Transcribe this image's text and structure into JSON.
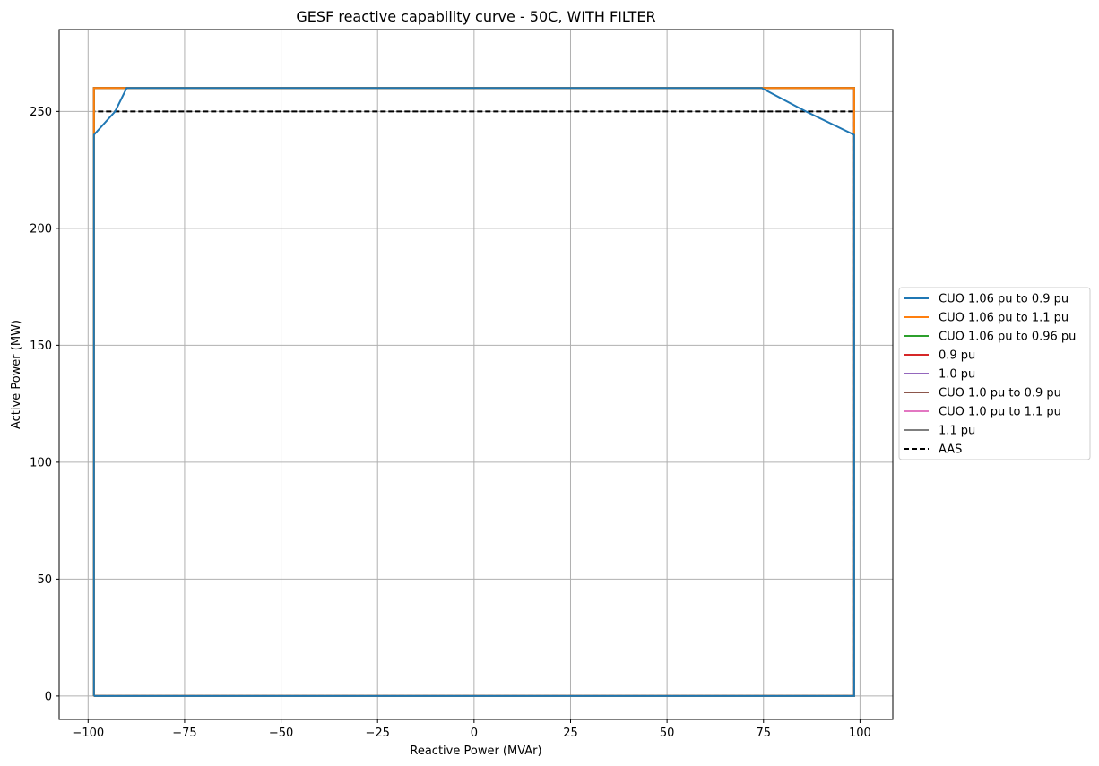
{
  "chart_data": {
    "type": "line",
    "title": "GESF reactive capability curve - 50C, WITH FILTER",
    "xlabel": "Reactive Power (MVAr)",
    "ylabel": "Active Power (MW)",
    "xlim": [
      -107.5,
      108.5
    ],
    "ylim": [
      -10,
      285
    ],
    "xticks": [
      -100,
      -75,
      -50,
      -25,
      0,
      25,
      50,
      75,
      100
    ],
    "xtick_labels": [
      "−100",
      "−75",
      "−50",
      "−25",
      "0",
      "25",
      "50",
      "75",
      "100"
    ],
    "yticks": [
      0,
      50,
      100,
      150,
      200,
      250
    ],
    "ytick_labels": [
      "0",
      "50",
      "100",
      "150",
      "200",
      "250"
    ],
    "grid": true,
    "legend_position": "center-right-outside",
    "series": [
      {
        "name": "CUO 1.06 pu to 0.9 pu",
        "color": "#1f77b4",
        "dash": "solid",
        "x": [
          -98.5,
          -98.5,
          -93,
          -90,
          74.5,
          86,
          98.5,
          98.5,
          -98.5
        ],
        "y": [
          0,
          240,
          250,
          260,
          260,
          250,
          240,
          0,
          0
        ]
      },
      {
        "name": "CUO 1.06 pu to 1.1 pu",
        "color": "#ff7f0e",
        "dash": "solid",
        "x": [
          -98.5,
          -98.5,
          98.5,
          98.5,
          -98.5
        ],
        "y": [
          0,
          260,
          260,
          0,
          0
        ]
      },
      {
        "name": "CUO 1.06 pu to 0.96 pu",
        "color": "#2ca02c",
        "dash": "solid",
        "x": [
          -98.5,
          -98.5,
          98.5,
          98.5,
          -98.5
        ],
        "y": [
          0,
          260,
          260,
          0,
          0
        ]
      },
      {
        "name": "0.9 pu",
        "color": "#d62728",
        "dash": "solid",
        "x": [
          -98.5,
          -98.5,
          98.5,
          98.5,
          -98.5
        ],
        "y": [
          0,
          260,
          260,
          0,
          0
        ]
      },
      {
        "name": "1.0 pu",
        "color": "#9467bd",
        "dash": "solid",
        "x": [
          -98.5,
          -98.5,
          98.5,
          98.5,
          -98.5
        ],
        "y": [
          0,
          260,
          260,
          0,
          0
        ]
      },
      {
        "name": "CUO 1.0 pu to 0.9 pu",
        "color": "#8c564b",
        "dash": "solid",
        "x": [
          -98.5,
          -98.5,
          98.5,
          98.5,
          -98.5
        ],
        "y": [
          0,
          260,
          260,
          0,
          0
        ]
      },
      {
        "name": "CUO 1.0 pu to 1.1 pu",
        "color": "#e377c2",
        "dash": "solid",
        "x": [
          -98.5,
          -98.5,
          98.5,
          98.5,
          -98.5
        ],
        "y": [
          0,
          260,
          260,
          0,
          0
        ]
      },
      {
        "name": "1.1 pu",
        "color": "#7f7f7f",
        "dash": "solid",
        "x": [
          -98.5,
          -98.5,
          98.5,
          98.5,
          -98.5
        ],
        "y": [
          0,
          260,
          260,
          0,
          0
        ]
      },
      {
        "name": "AAS",
        "color": "#000000",
        "dash": "dashed",
        "x": [
          -98.5,
          -98.5,
          98.5,
          98.5,
          -98.5
        ],
        "y": [
          0,
          250,
          250,
          0,
          0
        ]
      }
    ]
  }
}
